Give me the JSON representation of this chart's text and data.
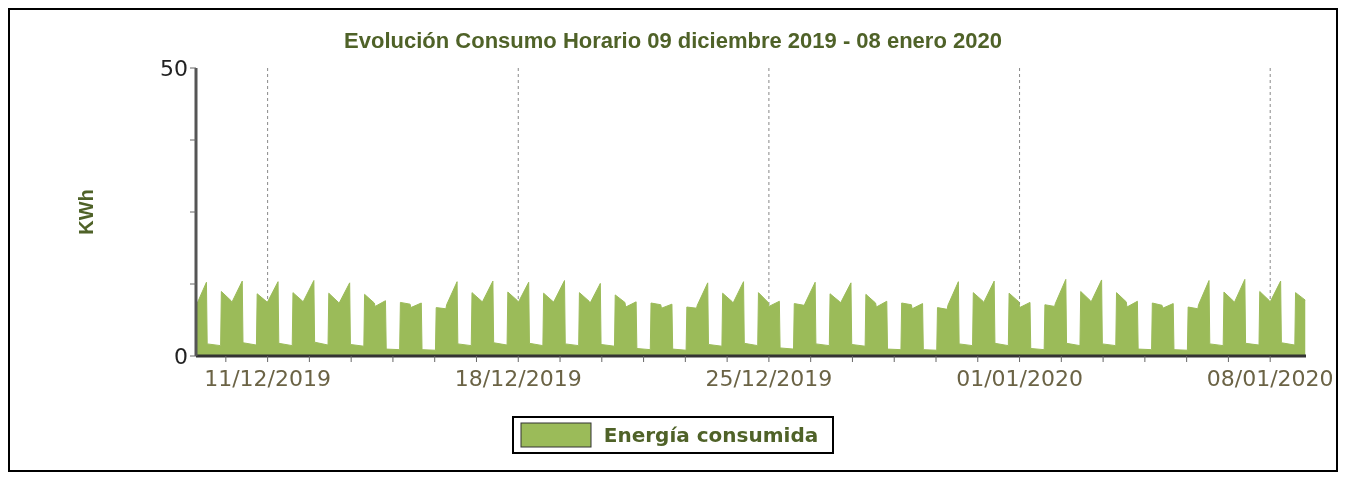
{
  "chart_data": {
    "type": "area",
    "title": "Evolución Consumo Horario 09 diciembre 2019 - 08 enero 2020",
    "ylabel": "KWh",
    "x": [
      "2019-12-09T00:00",
      "2019-12-09T07:00",
      "2019-12-09T07:30",
      "2019-12-09T16:30",
      "2019-12-09T17:00",
      "2019-12-09T23:30",
      "2019-12-10T00:00",
      "2019-12-10T07:00",
      "2019-12-10T07:30",
      "2019-12-10T16:30",
      "2019-12-10T17:00",
      "2019-12-10T23:30",
      "2019-12-11T00:00",
      "2019-12-11T07:00",
      "2019-12-11T07:30",
      "2019-12-11T16:30",
      "2019-12-11T17:00",
      "2019-12-11T23:30",
      "2019-12-12T00:00",
      "2019-12-12T07:00",
      "2019-12-12T07:30",
      "2019-12-12T16:30",
      "2019-12-12T17:00",
      "2019-12-12T23:30",
      "2019-12-13T00:00",
      "2019-12-13T07:00",
      "2019-12-13T07:30",
      "2019-12-13T16:30",
      "2019-12-13T17:00",
      "2019-12-13T23:30",
      "2019-12-14T00:00",
      "2019-12-14T07:00",
      "2019-12-14T07:30",
      "2019-12-14T16:30",
      "2019-12-14T17:00",
      "2019-12-14T23:30",
      "2019-12-15T00:00",
      "2019-12-15T07:00",
      "2019-12-15T07:30",
      "2019-12-15T16:30",
      "2019-12-15T17:00",
      "2019-12-15T23:30",
      "2019-12-16T00:00",
      "2019-12-16T07:00",
      "2019-12-16T07:30",
      "2019-12-16T16:30",
      "2019-12-16T17:00",
      "2019-12-16T23:30",
      "2019-12-17T00:00",
      "2019-12-17T07:00",
      "2019-12-17T07:30",
      "2019-12-17T16:30",
      "2019-12-17T17:00",
      "2019-12-17T23:30",
      "2019-12-18T00:00",
      "2019-12-18T07:00",
      "2019-12-18T07:30",
      "2019-12-18T16:30",
      "2019-12-18T17:00",
      "2019-12-18T23:30",
      "2019-12-19T00:00",
      "2019-12-19T07:00",
      "2019-12-19T07:30",
      "2019-12-19T16:30",
      "2019-12-19T17:00",
      "2019-12-19T23:30",
      "2019-12-20T00:00",
      "2019-12-20T07:00",
      "2019-12-20T07:30",
      "2019-12-20T16:30",
      "2019-12-20T17:00",
      "2019-12-20T23:30",
      "2019-12-21T00:00",
      "2019-12-21T07:00",
      "2019-12-21T07:30",
      "2019-12-21T16:30",
      "2019-12-21T17:00",
      "2019-12-21T23:30",
      "2019-12-22T00:00",
      "2019-12-22T07:00",
      "2019-12-22T07:30",
      "2019-12-22T16:30",
      "2019-12-22T17:00",
      "2019-12-22T23:30",
      "2019-12-23T00:00",
      "2019-12-23T07:00",
      "2019-12-23T07:30",
      "2019-12-23T16:30",
      "2019-12-23T17:00",
      "2019-12-23T23:30",
      "2019-12-24T00:00",
      "2019-12-24T07:00",
      "2019-12-24T07:30",
      "2019-12-24T16:30",
      "2019-12-24T17:00",
      "2019-12-24T23:30",
      "2019-12-25T00:00",
      "2019-12-25T07:00",
      "2019-12-25T07:30",
      "2019-12-25T16:30",
      "2019-12-25T17:00",
      "2019-12-25T23:30",
      "2019-12-26T00:00",
      "2019-12-26T07:00",
      "2019-12-26T07:30",
      "2019-12-26T16:30",
      "2019-12-26T17:00",
      "2019-12-26T23:30",
      "2019-12-27T00:00",
      "2019-12-27T07:00",
      "2019-12-27T07:30",
      "2019-12-27T16:30",
      "2019-12-27T17:00",
      "2019-12-27T23:30",
      "2019-12-28T00:00",
      "2019-12-28T07:00",
      "2019-12-28T07:30",
      "2019-12-28T16:30",
      "2019-12-28T17:00",
      "2019-12-28T23:30",
      "2019-12-29T00:00",
      "2019-12-29T07:00",
      "2019-12-29T07:30",
      "2019-12-29T16:30",
      "2019-12-29T17:00",
      "2019-12-29T23:30",
      "2019-12-30T00:00",
      "2019-12-30T07:00",
      "2019-12-30T07:30",
      "2019-12-30T16:30",
      "2019-12-30T17:00",
      "2019-12-30T23:30",
      "2019-12-31T00:00",
      "2019-12-31T07:00",
      "2019-12-31T07:30",
      "2019-12-31T16:30",
      "2019-12-31T17:00",
      "2019-12-31T23:30",
      "2020-01-01T00:00",
      "2020-01-01T07:00",
      "2020-01-01T07:30",
      "2020-01-01T16:30",
      "2020-01-01T17:00",
      "2020-01-01T23:30",
      "2020-01-02T00:00",
      "2020-01-02T07:00",
      "2020-01-02T07:30",
      "2020-01-02T16:30",
      "2020-01-02T17:00",
      "2020-01-02T23:30",
      "2020-01-03T00:00",
      "2020-01-03T07:00",
      "2020-01-03T07:30",
      "2020-01-03T16:30",
      "2020-01-03T17:00",
      "2020-01-03T23:30",
      "2020-01-04T00:00",
      "2020-01-04T07:00",
      "2020-01-04T07:30",
      "2020-01-04T16:30",
      "2020-01-04T17:00",
      "2020-01-04T23:30",
      "2020-01-05T00:00",
      "2020-01-05T07:00",
      "2020-01-05T07:30",
      "2020-01-05T16:30",
      "2020-01-05T17:00",
      "2020-01-05T23:30",
      "2020-01-06T00:00",
      "2020-01-06T07:00",
      "2020-01-06T07:30",
      "2020-01-06T16:30",
      "2020-01-06T17:00",
      "2020-01-06T23:30",
      "2020-01-07T00:00",
      "2020-01-07T07:00",
      "2020-01-07T07:30",
      "2020-01-07T16:30",
      "2020-01-07T17:00",
      "2020-01-07T23:30",
      "2020-01-08T00:00",
      "2020-01-08T07:00",
      "2020-01-08T07:30",
      "2020-01-08T16:30",
      "2020-01-08T17:00",
      "2020-01-08T23:30"
    ],
    "series": [
      {
        "name": "Energía consumida",
        "color": "#9bbb59",
        "values": [
          8.7,
          12.8,
          2.1,
          1.8,
          11.2,
          9.6,
          9.3,
          13.0,
          2.3,
          1.9,
          10.8,
          9.4,
          9.4,
          12.9,
          2.2,
          1.8,
          11.0,
          9.5,
          9.5,
          13.1,
          2.4,
          1.9,
          10.9,
          9.3,
          9.2,
          12.7,
          2.0,
          1.7,
          10.7,
          9.2,
          8.6,
          9.6,
          1.2,
          1.1,
          9.3,
          9.0,
          8.4,
          9.2,
          1.1,
          1.0,
          8.4,
          8.2,
          8.9,
          12.9,
          2.1,
          1.8,
          11.0,
          9.5,
          9.4,
          13.0,
          2.3,
          1.9,
          11.1,
          9.6,
          9.3,
          12.8,
          2.2,
          1.8,
          10.9,
          9.4,
          9.5,
          13.1,
          2.1,
          1.8,
          11.0,
          9.5,
          9.1,
          12.6,
          2.0,
          1.7,
          10.6,
          9.3,
          8.5,
          9.4,
          1.3,
          1.1,
          9.2,
          8.9,
          8.3,
          9.0,
          1.2,
          1.0,
          8.5,
          8.3,
          8.8,
          12.7,
          2.0,
          1.7,
          10.9,
          9.4,
          9.2,
          12.9,
          2.2,
          1.8,
          11.0,
          9.3,
          8.6,
          9.5,
          1.4,
          1.2,
          9.1,
          8.8,
          9.0,
          12.8,
          2.1,
          1.8,
          10.8,
          9.4,
          9.2,
          12.7,
          2.0,
          1.7,
          10.7,
          9.2,
          8.5,
          9.5,
          1.2,
          1.1,
          9.2,
          8.9,
          8.2,
          9.1,
          1.1,
          1.0,
          8.4,
          8.1,
          8.8,
          12.9,
          2.1,
          1.8,
          11.0,
          9.5,
          9.3,
          13.0,
          2.2,
          1.8,
          10.9,
          9.4,
          8.4,
          9.3,
          1.3,
          1.1,
          8.9,
          8.6,
          9.1,
          13.3,
          2.2,
          1.8,
          11.2,
          9.6,
          9.4,
          13.2,
          2.1,
          1.8,
          11.0,
          9.4,
          8.5,
          9.5,
          1.2,
          1.1,
          9.2,
          8.8,
          8.3,
          9.1,
          1.1,
          1.0,
          8.5,
          8.2,
          8.9,
          13.1,
          2.1,
          1.8,
          11.1,
          9.5,
          9.3,
          13.3,
          2.2,
          1.9,
          11.2,
          9.6,
          9.4,
          13.0,
          2.3,
          1.9,
          11.0,
          9.7
        ]
      }
    ],
    "xlim": [
      "2019-12-09T00:00",
      "2020-01-09T00:00"
    ],
    "xticks": [
      {
        "value": "2019-12-09T20:00",
        "label": null
      },
      {
        "value": "2019-12-11T00:00",
        "label": "11/12/2019"
      },
      {
        "value": "2019-12-12T04:00",
        "label": null
      },
      {
        "value": "2019-12-13T08:00",
        "label": null
      },
      {
        "value": "2019-12-14T12:00",
        "label": null
      },
      {
        "value": "2019-12-15T16:00",
        "label": null
      },
      {
        "value": "2019-12-16T20:00",
        "label": null
      },
      {
        "value": "2019-12-18T00:00",
        "label": "18/12/2019"
      },
      {
        "value": "2019-12-19T04:00",
        "label": null
      },
      {
        "value": "2019-12-20T08:00",
        "label": null
      },
      {
        "value": "2019-12-21T12:00",
        "label": null
      },
      {
        "value": "2019-12-22T16:00",
        "label": null
      },
      {
        "value": "2019-12-23T20:00",
        "label": null
      },
      {
        "value": "2019-12-25T00:00",
        "label": "25/12/2019"
      },
      {
        "value": "2019-12-26T04:00",
        "label": null
      },
      {
        "value": "2019-12-27T08:00",
        "label": null
      },
      {
        "value": "2019-12-28T12:00",
        "label": null
      },
      {
        "value": "2019-12-29T16:00",
        "label": null
      },
      {
        "value": "2019-12-30T20:00",
        "label": null
      },
      {
        "value": "2020-01-01T00:00",
        "label": "01/01/2020"
      },
      {
        "value": "2020-01-02T04:00",
        "label": null
      },
      {
        "value": "2020-01-03T08:00",
        "label": null
      },
      {
        "value": "2020-01-04T12:00",
        "label": null
      },
      {
        "value": "2020-01-05T16:00",
        "label": null
      },
      {
        "value": "2020-01-06T20:00",
        "label": null
      },
      {
        "value": "2020-01-08T00:00",
        "label": "08/01/2020"
      }
    ],
    "ylim": [
      0,
      50
    ],
    "yticks": [
      0,
      {
        "value": 12.5,
        "label": null
      },
      {
        "value": 25,
        "label": null
      },
      {
        "value": 37.5,
        "label": null
      },
      50
    ],
    "grid": "x",
    "legend": "bottom"
  }
}
